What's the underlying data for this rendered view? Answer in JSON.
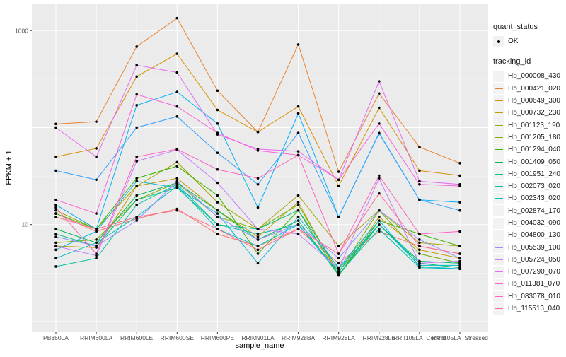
{
  "chart_data": {
    "type": "line",
    "xlabel": "sample_name",
    "ylabel": "FPKM + 1",
    "y_scale": "log10",
    "ylim": [
      0.79,
      1900
    ],
    "y_ticks": [
      10,
      1000
    ],
    "y_tick_labels": [
      "10",
      "1000"
    ],
    "grid": true,
    "legend_position": "right",
    "categories": [
      "PB350LA",
      "RRIM600LA",
      "RRIM600LE",
      "RRIM600SE",
      "RRIM600PE",
      "RRIM901LA",
      "RRIM928BA",
      "RRIM928LA",
      "RRIM928LE",
      "RRII105LA_Control",
      "RRII105LA_Stressed"
    ],
    "legend_shape": {
      "title": "quant_status",
      "entries": [
        "OK"
      ]
    },
    "legend_color_title": "tracking_id",
    "series": [
      {
        "name": "Hb_000008_430",
        "color": "#F8766D",
        "values": [
          13,
          8.5,
          11.5,
          14.5,
          8,
          6,
          9,
          4,
          8.5,
          6,
          5
        ]
      },
      {
        "name": "Hb_000421_020",
        "color": "#EA8331",
        "values": [
          109,
          115,
          684,
          1343,
          240,
          90,
          719,
          35,
          225,
          63,
          43
        ]
      },
      {
        "name": "Hb_000649_300",
        "color": "#D89000",
        "values": [
          50,
          61,
          336,
          577,
          152,
          90,
          165,
          25,
          160,
          36,
          32
        ]
      },
      {
        "name": "Hb_000732_230",
        "color": "#C09B00",
        "values": [
          6,
          5.8,
          25,
          30,
          14,
          7.5,
          17,
          3,
          12,
          5.5,
          4.5
        ]
      },
      {
        "name": "Hb_001123_190",
        "color": "#A3A500",
        "values": [
          14,
          9,
          25,
          44,
          17,
          9,
          20,
          6,
          14,
          6.5,
          6
        ]
      },
      {
        "name": "Hb_001205_180",
        "color": "#7CAE00",
        "values": [
          6.5,
          7,
          18,
          27,
          12,
          9,
          16,
          3.2,
          14,
          5,
          4
        ]
      },
      {
        "name": "Hb_001294_040",
        "color": "#39B600",
        "values": [
          13,
          9,
          30,
          40,
          20,
          5,
          14,
          3,
          11,
          8,
          6
        ]
      },
      {
        "name": "Hb_001409_050",
        "color": "#00BB4E",
        "values": [
          9,
          6.5,
          20,
          27,
          14,
          7,
          11,
          3,
          10,
          4,
          3.6
        ]
      },
      {
        "name": "Hb_001951_240",
        "color": "#00BF7D",
        "values": [
          8,
          6,
          18,
          24,
          10,
          9,
          14,
          3.5,
          10,
          4.2,
          4
        ]
      },
      {
        "name": "Hb_002073_020",
        "color": "#00C1A3",
        "values": [
          3.7,
          4.5,
          16,
          26,
          10,
          8,
          10,
          3.1,
          9,
          3.6,
          3.5
        ]
      },
      {
        "name": "Hb_002343_020",
        "color": "#00BFC4",
        "values": [
          4.5,
          6.5,
          12,
          25,
          9,
          6,
          10,
          3.3,
          10,
          3.8,
          3.8
        ]
      },
      {
        "name": "Hb_002874_170",
        "color": "#00BAE0",
        "values": [
          5.5,
          8.5,
          28,
          24,
          13,
          4,
          12,
          3.6,
          11,
          3.7,
          3.5
        ]
      },
      {
        "name": "Hb_004032_090",
        "color": "#00B0F6",
        "values": [
          16,
          9,
          170,
          233,
          110,
          15,
          140,
          12,
          88,
          18,
          17
        ]
      },
      {
        "name": "Hb_004800_130",
        "color": "#35A2FF",
        "values": [
          36,
          29,
          100,
          130,
          55,
          26,
          88,
          12,
          87,
          18,
          14
        ]
      },
      {
        "name": "Hb_005539_100",
        "color": "#9590FF",
        "values": [
          7.5,
          6,
          11,
          28,
          12,
          7,
          10,
          4.5,
          14,
          7,
          4.5
        ]
      },
      {
        "name": "Hb_005724_050",
        "color": "#C77CFF",
        "values": [
          6,
          4.8,
          45,
          59,
          27,
          9,
          8,
          3.5,
          30,
          4,
          4.2
        ]
      },
      {
        "name": "Hb_007290_070",
        "color": "#E76BF3",
        "values": [
          100,
          50,
          440,
          370,
          85,
          60,
          57,
          29,
          300,
          28,
          26
        ]
      },
      {
        "name": "Hb_011381_070",
        "color": "#FA62DB",
        "values": [
          18,
          13,
          220,
          165,
          88,
          58,
          52,
          29,
          110,
          26,
          25
        ]
      },
      {
        "name": "Hb_083078_010",
        "color": "#FF62BC",
        "values": [
          15,
          5,
          50,
          60,
          37,
          30,
          52,
          5,
          32,
          8,
          8.5
        ]
      },
      {
        "name": "Hb_115513_040",
        "color": "#FF6C91",
        "values": [
          12,
          9,
          12,
          14,
          9,
          5.5,
          9,
          5,
          21,
          6,
          5
        ]
      }
    ]
  }
}
